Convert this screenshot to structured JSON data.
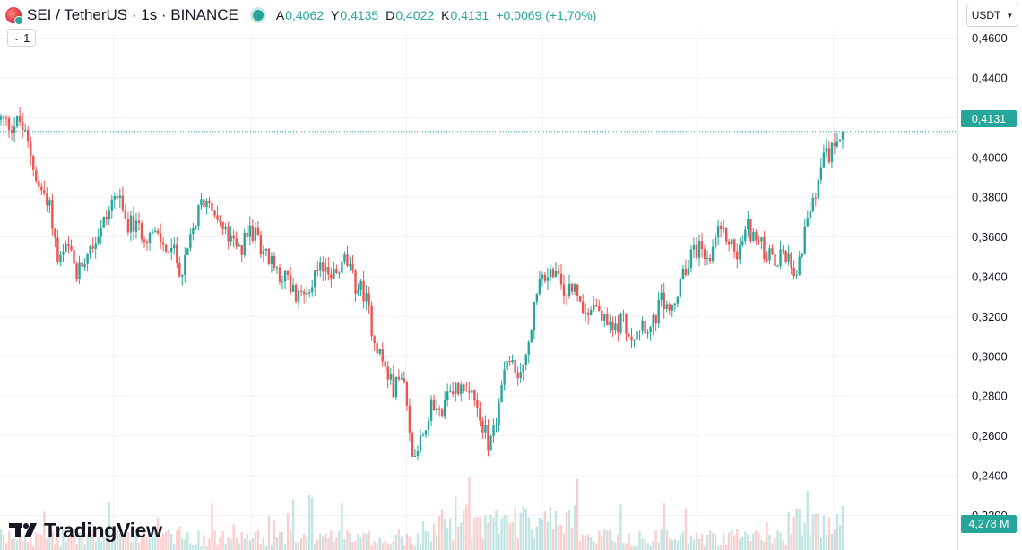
{
  "header": {
    "title": "SEI / TetherUS · 1s · BINANCE",
    "ohlc": {
      "open_label": "A",
      "open": "0,4062",
      "high_label": "Y",
      "high": "0,4135",
      "low_label": "D",
      "low": "0,4022",
      "close_label": "K",
      "close": "0,4131",
      "change": "+0,0069 (+1,70%)"
    },
    "interval": "1",
    "currency": "USDT"
  },
  "brand": {
    "name": "TradingView"
  },
  "tags": {
    "last_price": "0,4131",
    "volume": "4,278 M"
  },
  "colors": {
    "up": "#26a69a",
    "down": "#ef5350",
    "grid": "#f0f3fa"
  },
  "icons": {
    "interval": "chevron-down-icon",
    "currency": "chevron-down-icon",
    "symbol": "sei-logo-icon",
    "brand": "tradingview-logo-icon"
  },
  "chart_data": {
    "type": "candlestick",
    "y_axis": {
      "side": "right",
      "ticks": [
        "0,4600",
        "0,4400",
        "0,4200",
        "0,4000",
        "0,3800",
        "0,3600",
        "0,3400",
        "0,3200",
        "0,3000",
        "0,2800",
        "0,2600",
        "0,2400",
        "0,2200"
      ],
      "tick_values": [
        0.46,
        0.44,
        0.42,
        0.4,
        0.38,
        0.36,
        0.34,
        0.32,
        0.3,
        0.28,
        0.26,
        0.24,
        0.22
      ],
      "range": [
        0.2026,
        0.4648
      ]
    },
    "grid": true,
    "last_price": 0.4131,
    "price_path": [
      0.419,
      0.416,
      0.418,
      0.404,
      0.384,
      0.38,
      0.346,
      0.355,
      0.339,
      0.355,
      0.36,
      0.37,
      0.383,
      0.368,
      0.365,
      0.362,
      0.361,
      0.356,
      0.353,
      0.341,
      0.362,
      0.378,
      0.379,
      0.365,
      0.358,
      0.352,
      0.364,
      0.358,
      0.348,
      0.343,
      0.338,
      0.328,
      0.336,
      0.34,
      0.346,
      0.34,
      0.349,
      0.336,
      0.332,
      0.31,
      0.296,
      0.284,
      0.29,
      0.249,
      0.262,
      0.274,
      0.272,
      0.28,
      0.287,
      0.284,
      0.27,
      0.256,
      0.274,
      0.298,
      0.289,
      0.303,
      0.331,
      0.342,
      0.341,
      0.33,
      0.336,
      0.32,
      0.328,
      0.318,
      0.314,
      0.319,
      0.31,
      0.318,
      0.313,
      0.328,
      0.322,
      0.334,
      0.351,
      0.356,
      0.346,
      0.361,
      0.36,
      0.35,
      0.366,
      0.358,
      0.352,
      0.346,
      0.352,
      0.342,
      0.36,
      0.378,
      0.398,
      0.405,
      0.4131
    ],
    "volume_max": 10.5,
    "volume_last": 4.278,
    "volume_unit": "M"
  }
}
